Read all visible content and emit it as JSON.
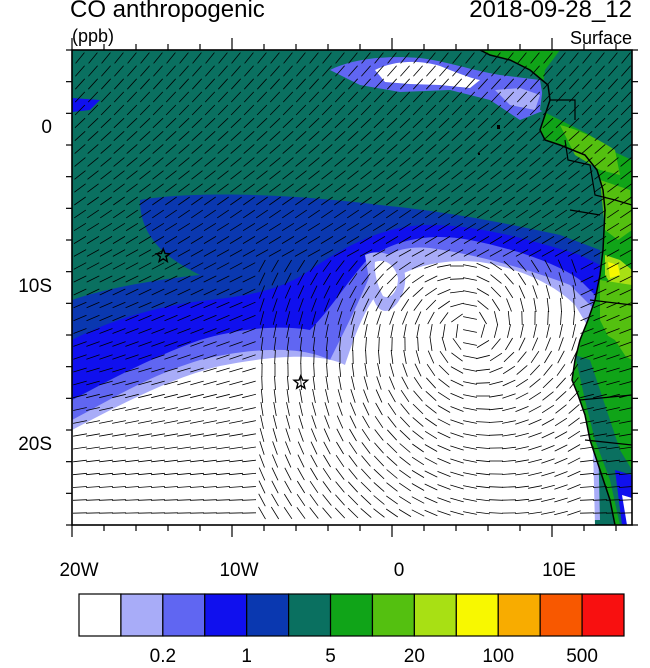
{
  "header": {
    "title": "CO anthropogenic",
    "units": "(ppb)",
    "datetime": "2018-09-28_12",
    "level": "Surface"
  },
  "map": {
    "lon_range": [
      -20,
      15
    ],
    "lat_range": [
      -25,
      5
    ],
    "y_ticks": [
      {
        "lat": 0,
        "label": "0"
      },
      {
        "lat": -10,
        "label": "10S"
      },
      {
        "lat": -20,
        "label": "20S"
      }
    ],
    "x_ticks": [
      {
        "lon": -20,
        "label": "20W"
      },
      {
        "lon": -10,
        "label": "10W"
      },
      {
        "lon": 0,
        "label": "0"
      },
      {
        "lon": 10,
        "label": "10E"
      }
    ],
    "stars": [
      {
        "lon": -14.3,
        "lat": -8
      },
      {
        "lon": -5.7,
        "lat": -16
      }
    ]
  },
  "colorbar": {
    "colors": [
      "#ffffff",
      "#a8acf8",
      "#6066f2",
      "#1010ee",
      "#0a38b0",
      "#0a7060",
      "#10a418",
      "#54c010",
      "#a8e014",
      "#f8f800",
      "#f8ac00",
      "#f85800",
      "#f81010"
    ],
    "labels": [
      {
        "after_box": 2,
        "text": "0.2"
      },
      {
        "after_box": 4,
        "text": "1"
      },
      {
        "after_box": 6,
        "text": "5"
      },
      {
        "after_box": 8,
        "text": "20"
      },
      {
        "after_box": 10,
        "text": "100"
      },
      {
        "after_box": 12,
        "text": "500"
      }
    ]
  }
}
